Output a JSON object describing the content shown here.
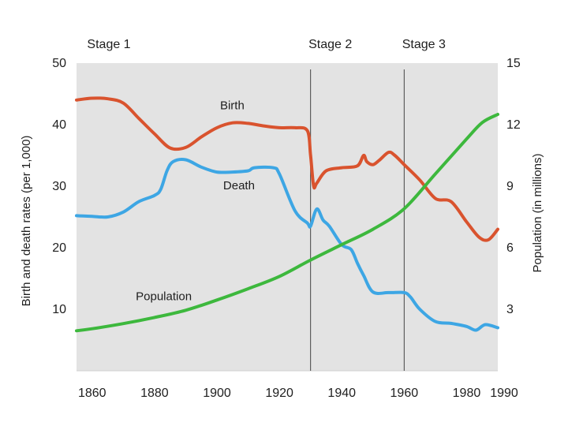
{
  "chart_data": {
    "type": "line",
    "stage_labels": [
      {
        "label": "Stage  1",
        "year": null
      },
      {
        "label": "Stage  2",
        "year": 1930
      },
      {
        "label": "Stage  3",
        "year": 1960
      }
    ],
    "xlim": [
      1855,
      1990
    ],
    "x_ticks": [
      1860,
      1880,
      1900,
      1920,
      1940,
      1960,
      1980,
      1990
    ],
    "ylabel_left": "Birth and death rates (per 1,000)",
    "ylim_left": [
      0,
      50
    ],
    "y_ticks_left": [
      10,
      20,
      30,
      40,
      50
    ],
    "ylabel_right": "Population (in millions)",
    "ylim_right": [
      0,
      15
    ],
    "y_ticks_right": [
      3,
      6,
      9,
      12,
      15
    ],
    "grid": false,
    "colors": {
      "plot_bg": "#e3e3e3",
      "birth": "#d9532e",
      "death": "#3da6e4",
      "population": "#3db83d"
    },
    "series": [
      {
        "name": "Birth",
        "axis": "left",
        "x": [
          1855,
          1860,
          1865,
          1870,
          1875,
          1880,
          1885,
          1890,
          1895,
          1900,
          1905,
          1910,
          1915,
          1920,
          1925,
          1929,
          1930,
          1931,
          1932,
          1935,
          1940,
          1945,
          1947,
          1948,
          1950,
          1952,
          1955,
          1957,
          1960,
          1965,
          1970,
          1975,
          1980,
          1984,
          1987,
          1990
        ],
        "values": [
          44,
          44.3,
          44.2,
          43.5,
          41,
          38.5,
          36.2,
          36.3,
          38,
          39.5,
          40.3,
          40.2,
          39.8,
          39.5,
          39.5,
          39,
          35,
          30,
          30.5,
          32.5,
          33,
          33.3,
          35,
          34,
          33.5,
          34.2,
          35.5,
          35,
          33.5,
          31,
          28,
          27.5,
          24.2,
          21.7,
          21.3,
          23
        ]
      },
      {
        "name": "Death",
        "axis": "left",
        "x": [
          1855,
          1860,
          1865,
          1870,
          1875,
          1880,
          1882,
          1884,
          1886,
          1890,
          1895,
          1900,
          1905,
          1910,
          1912,
          1918,
          1920,
          1925,
          1929,
          1930,
          1932,
          1934,
          1936,
          1940,
          1943,
          1945,
          1947,
          1950,
          1955,
          1960,
          1962,
          1965,
          1970,
          1975,
          1980,
          1983,
          1986,
          1990
        ],
        "values": [
          25.2,
          25.1,
          25,
          25.8,
          27.5,
          28.5,
          29.5,
          32.5,
          34,
          34.3,
          33.1,
          32.3,
          32.3,
          32.5,
          33,
          33,
          32,
          26,
          24,
          23.5,
          26.3,
          24.5,
          23.5,
          20.5,
          19.7,
          17.5,
          15.5,
          12.8,
          12.7,
          12.7,
          12,
          10,
          8,
          7.7,
          7.2,
          6.6,
          7.5,
          7
        ]
      },
      {
        "name": "Population",
        "axis": "right",
        "x": [
          1855,
          1860,
          1870,
          1880,
          1890,
          1900,
          1910,
          1920,
          1930,
          1940,
          1950,
          1960,
          1970,
          1980,
          1985,
          1990
        ],
        "values": [
          1.95,
          2.05,
          2.3,
          2.6,
          2.95,
          3.45,
          4,
          4.6,
          5.4,
          6.15,
          6.9,
          7.9,
          9.6,
          11.3,
          12.1,
          12.5
        ]
      }
    ]
  }
}
